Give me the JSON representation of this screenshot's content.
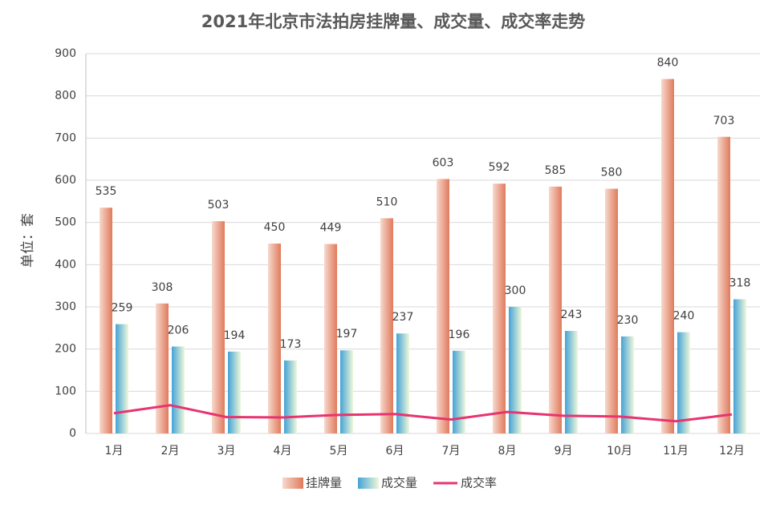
{
  "chart_data": {
    "type": "bar-line",
    "title": "2021年北京市法拍房挂牌量、成交量、成交率走势",
    "y_label": "单位：套",
    "categories": [
      "1月",
      "2月",
      "3月",
      "4月",
      "5月",
      "6月",
      "7月",
      "8月",
      "9月",
      "10月",
      "11月",
      "12月"
    ],
    "series": [
      {
        "name": "挂牌量",
        "type": "bar",
        "color": "#e8896c",
        "values": [
          535,
          308,
          503,
          450,
          449,
          510,
          603,
          592,
          585,
          580,
          840,
          703
        ]
      },
      {
        "name": "成交量",
        "type": "bar",
        "color": "#5ab4dc",
        "values": [
          259,
          206,
          194,
          173,
          197,
          237,
          196,
          300,
          243,
          230,
          240,
          318
        ]
      },
      {
        "name": "成交率",
        "type": "line",
        "color": "#e8336f",
        "values": [
          48,
          67,
          39,
          38,
          44,
          46,
          33,
          51,
          42,
          40,
          29,
          45
        ]
      }
    ],
    "ylim": [
      0,
      900
    ],
    "yticks": [
      0,
      100,
      200,
      300,
      400,
      500,
      600,
      700,
      800,
      900
    ],
    "grid": true,
    "legend": "bottom"
  }
}
